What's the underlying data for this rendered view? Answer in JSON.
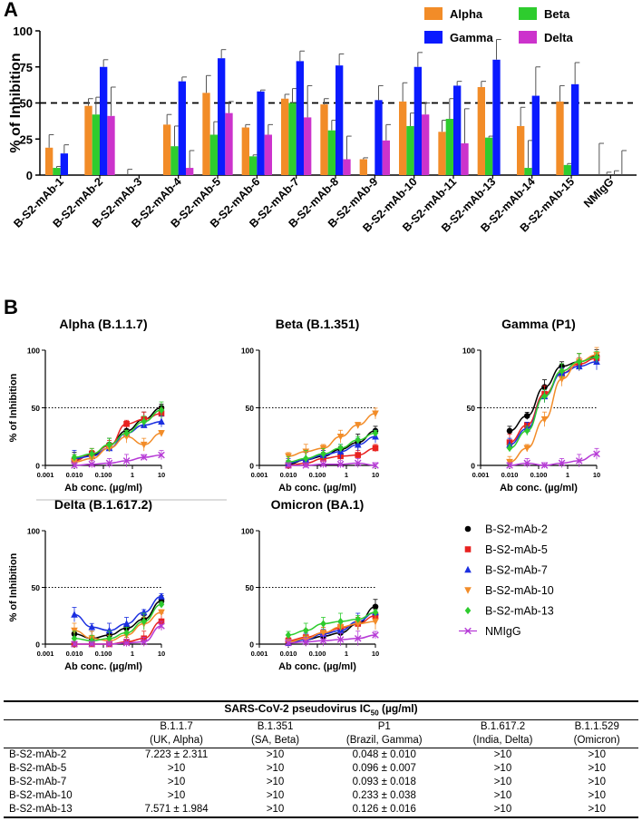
{
  "panels": {
    "a": "A",
    "b": "B"
  },
  "chart_data": [
    {
      "type": "bar",
      "title": "",
      "ylabel": "% of Inhibition",
      "xlabel": "",
      "ylim": [
        0,
        100
      ],
      "yticks": [
        "0",
        "25",
        "50",
        "75",
        "100"
      ],
      "reference_line": 50,
      "legend_placement": "top-right",
      "categories": [
        "B-S2-mAb-1",
        "B-S2-mAb-2",
        "B-S2-mAb-3",
        "B-S2-mAb-4",
        "B-S2-mAb-5",
        "B-S2-mAb-6",
        "B-S2-mAb-7",
        "B-S2-mAb-8",
        "B-S2-mAb-9",
        "B-S2-mAb-10",
        "B-S2-mAb-11",
        "B-S2-mAb-13",
        "B-S2-mAb-14",
        "B-S2-mAb-15",
        "NMIgG"
      ],
      "series": [
        {
          "name": "Alpha",
          "color": "#f28c28",
          "values": [
            19,
            48,
            0,
            35,
            57,
            33,
            53,
            49,
            11,
            51,
            30,
            61,
            34,
            51,
            0
          ],
          "errors": [
            9,
            5,
            4,
            7,
            12,
            2,
            3,
            4,
            1,
            13,
            8,
            4,
            13,
            11,
            22
          ]
        },
        {
          "name": "Beta",
          "color": "#2ecc2e",
          "values": [
            5,
            42,
            0,
            20,
            28,
            13,
            50,
            31,
            0,
            34,
            39,
            26,
            5,
            7,
            0
          ],
          "errors": [
            1,
            12,
            0,
            14,
            9,
            1,
            10,
            7,
            0,
            9,
            14,
            1,
            19,
            1,
            2
          ]
        },
        {
          "name": "Gamma",
          "color": "#0a1aff",
          "values": [
            15,
            75,
            0,
            65,
            81,
            58,
            79,
            76,
            52,
            75,
            62,
            80,
            55,
            63,
            0
          ],
          "errors": [
            6,
            5,
            0,
            3,
            6,
            1,
            7,
            8,
            10,
            10,
            3,
            14,
            20,
            15,
            3
          ]
        },
        {
          "name": "Delta",
          "color": "#cc33cc",
          "values": [
            0,
            41,
            0,
            5,
            43,
            28,
            40,
            11,
            24,
            42,
            22,
            0,
            0,
            0,
            0
          ],
          "errors": [
            0,
            20,
            0,
            12,
            8,
            7,
            22,
            16,
            11,
            8,
            24,
            0,
            0,
            0,
            17
          ]
        }
      ]
    },
    {
      "type": "line",
      "title": "Alpha (B.1.1.7)",
      "xlabel": "Ab conc. (µg/ml)",
      "ylabel": "% of Inhibition",
      "xscale": "log",
      "xlim": [
        0.001,
        10
      ],
      "ylim": [
        0,
        100
      ],
      "reference_line": 50,
      "x": [
        0.01,
        0.04,
        0.16,
        0.63,
        2.5,
        10
      ],
      "series": [
        {
          "name": "B-S2-mAb-2",
          "values": [
            5,
            9,
            18,
            30,
            40,
            50
          ]
        },
        {
          "name": "B-S2-mAb-5",
          "values": [
            4,
            10,
            17,
            36,
            40,
            45
          ]
        },
        {
          "name": "B-S2-mAb-7",
          "values": [
            6,
            8,
            15,
            28,
            35,
            38
          ]
        },
        {
          "name": "B-S2-mAb-10",
          "values": [
            3,
            6,
            15,
            25,
            18,
            28
          ]
        },
        {
          "name": "B-S2-mAb-13",
          "values": [
            7,
            10,
            18,
            28,
            38,
            48
          ]
        },
        {
          "name": "NMIgG",
          "values": [
            0,
            1,
            2,
            4,
            7,
            9
          ]
        }
      ]
    },
    {
      "type": "line",
      "title": "Beta (B.1.351)",
      "xlabel": "Ab conc. (µg/ml)",
      "ylabel": "",
      "xscale": "log",
      "xlim": [
        0.001,
        10
      ],
      "ylim": [
        0,
        100
      ],
      "reference_line": 50,
      "x": [
        0.01,
        0.04,
        0.16,
        0.63,
        2.5,
        10
      ],
      "series": [
        {
          "name": "B-S2-mAb-2",
          "values": [
            1,
            5,
            8,
            14,
            20,
            30
          ]
        },
        {
          "name": "B-S2-mAb-5",
          "values": [
            0,
            2,
            6,
            8,
            9,
            15
          ]
        },
        {
          "name": "B-S2-mAb-7",
          "values": [
            2,
            5,
            9,
            12,
            18,
            25
          ]
        },
        {
          "name": "B-S2-mAb-10",
          "values": [
            8,
            12,
            15,
            25,
            35,
            45
          ]
        },
        {
          "name": "B-S2-mAb-13",
          "values": [
            3,
            6,
            10,
            15,
            22,
            28
          ]
        },
        {
          "name": "NMIgG",
          "values": [
            0,
            0,
            1,
            1,
            2,
            0
          ]
        }
      ]
    },
    {
      "type": "line",
      "title": "Gamma (P1)",
      "xlabel": "Ab conc. (µg/ml)",
      "ylabel": "",
      "xscale": "log",
      "xlim": [
        0.001,
        10
      ],
      "ylim": [
        0,
        100
      ],
      "reference_line": 50,
      "x": [
        0.01,
        0.04,
        0.16,
        0.63,
        2.5,
        10
      ],
      "series": [
        {
          "name": "B-S2-mAb-2",
          "values": [
            30,
            43,
            68,
            86,
            90,
            95
          ]
        },
        {
          "name": "B-S2-mAb-5",
          "values": [
            20,
            35,
            62,
            80,
            88,
            93
          ]
        },
        {
          "name": "B-S2-mAb-7",
          "values": [
            18,
            32,
            60,
            80,
            86,
            90
          ]
        },
        {
          "name": "B-S2-mAb-10",
          "values": [
            3,
            15,
            40,
            75,
            90,
            96
          ]
        },
        {
          "name": "B-S2-mAb-13",
          "values": [
            15,
            30,
            60,
            82,
            90,
            94
          ]
        },
        {
          "name": "NMIgG",
          "values": [
            0,
            2,
            0,
            2,
            4,
            10
          ]
        }
      ]
    },
    {
      "type": "line",
      "title": "Delta (B.1.617.2)",
      "xlabel": "Ab conc. (µg/ml)",
      "ylabel": "% of Inhibition",
      "xscale": "log",
      "xlim": [
        0.001,
        10
      ],
      "ylim": [
        0,
        100
      ],
      "reference_line": 50,
      "x": [
        0.01,
        0.04,
        0.16,
        0.63,
        2.5,
        10
      ],
      "series": [
        {
          "name": "B-S2-mAb-2",
          "values": [
            9,
            5,
            8,
            14,
            22,
            38
          ]
        },
        {
          "name": "B-S2-mAb-5",
          "values": [
            0,
            0,
            0,
            2,
            5,
            20
          ]
        },
        {
          "name": "B-S2-mAb-7",
          "values": [
            26,
            15,
            12,
            18,
            28,
            42
          ]
        },
        {
          "name": "B-S2-mAb-10",
          "values": [
            12,
            5,
            3,
            8,
            18,
            28
          ]
        },
        {
          "name": "B-S2-mAb-13",
          "values": [
            5,
            3,
            5,
            10,
            20,
            35
          ]
        },
        {
          "name": "NMIgG",
          "values": [
            0,
            0,
            0,
            1,
            2,
            16
          ]
        }
      ]
    },
    {
      "type": "line",
      "title": "Omicron (BA.1)",
      "xlabel": "Ab conc. (µg/ml)",
      "ylabel": "",
      "xscale": "log",
      "xlim": [
        0.001,
        10
      ],
      "ylim": [
        0,
        100
      ],
      "reference_line": 50,
      "x": [
        0.01,
        0.04,
        0.16,
        0.63,
        2.5,
        10
      ],
      "series": [
        {
          "name": "B-S2-mAb-2",
          "values": [
            2,
            4,
            7,
            10,
            18,
            33
          ]
        },
        {
          "name": "B-S2-mAb-5",
          "values": [
            3,
            6,
            10,
            14,
            18,
            25
          ]
        },
        {
          "name": "B-S2-mAb-7",
          "values": [
            1,
            4,
            9,
            12,
            20,
            28
          ]
        },
        {
          "name": "B-S2-mAb-10",
          "values": [
            2,
            5,
            10,
            15,
            18,
            20
          ]
        },
        {
          "name": "B-S2-mAb-13",
          "values": [
            8,
            12,
            18,
            20,
            22,
            28
          ]
        },
        {
          "name": "NMIgG",
          "values": [
            1,
            2,
            3,
            4,
            5,
            8
          ]
        }
      ]
    }
  ],
  "curve_axis": {
    "yticks": [
      "0",
      "50",
      "100"
    ],
    "xticks": [
      "0.001",
      "0.010",
      "0.100",
      "1",
      "10"
    ]
  },
  "curve_legend": [
    {
      "name": "B-S2-mAb-2",
      "color": "#000000",
      "marker": "circle"
    },
    {
      "name": "B-S2-mAb-5",
      "color": "#e8211f",
      "marker": "square"
    },
    {
      "name": "B-S2-mAb-7",
      "color": "#1b2fe0",
      "marker": "triangle-up"
    },
    {
      "name": "B-S2-mAb-10",
      "color": "#f28c28",
      "marker": "triangle-down"
    },
    {
      "name": "B-S2-mAb-13",
      "color": "#2ecc2e",
      "marker": "diamond"
    },
    {
      "name": "NMIgG",
      "color": "#b63ad6",
      "marker": "cross"
    }
  ],
  "ic50_table": {
    "title": "SARS-CoV-2 pseudovirus IC",
    "title_sub": "50",
    "title_unit": " (µg/ml)",
    "columns": [
      {
        "variant": "B.1.1.7",
        "origin": "(UK, Alpha)"
      },
      {
        "variant": "B.1.351",
        "origin": "(SA, Beta)"
      },
      {
        "variant": "P1",
        "origin": "(Brazil, Gamma)"
      },
      {
        "variant": "B.1.617.2",
        "origin": "(India, Delta)"
      },
      {
        "variant": "B.1.1.529",
        "origin": "(Omicron)"
      }
    ],
    "rows": [
      {
        "name": "B-S2-mAb-2",
        "cells": [
          "7.223 ± 2.311",
          ">10",
          "0.048 ± 0.010",
          ">10",
          ">10"
        ]
      },
      {
        "name": "B-S2-mAb-5",
        "cells": [
          ">10",
          ">10",
          "0.096 ± 0.007",
          ">10",
          ">10"
        ]
      },
      {
        "name": "B-S2-mAb-7",
        "cells": [
          ">10",
          ">10",
          "0.093 ± 0.018",
          ">10",
          ">10"
        ]
      },
      {
        "name": "B-S2-mAb-10",
        "cells": [
          ">10",
          ">10",
          "0.233 ± 0.038",
          ">10",
          ">10"
        ]
      },
      {
        "name": "B-S2-mAb-13",
        "cells": [
          "7.571 ± 1.984",
          ">10",
          "0.126 ± 0.016",
          ">10",
          ">10"
        ]
      }
    ]
  }
}
